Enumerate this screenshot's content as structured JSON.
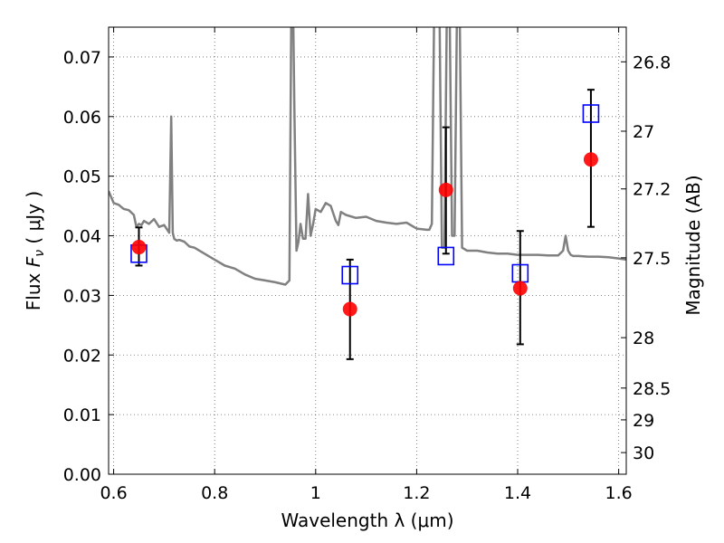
{
  "chart_data": {
    "type": "scatter",
    "xlabel": "Wavelength  λ (μm)",
    "ylabel": "Flux  F_ν  ( μJy )",
    "y2label": "Magnitude (AB)",
    "xlim": [
      0.59,
      1.615
    ],
    "ylim": [
      0.0,
      0.075
    ],
    "x_ticks": [
      {
        "value": 0.6,
        "label": "0.6"
      },
      {
        "value": 0.8,
        "label": "0.8"
      },
      {
        "value": 1.0,
        "label": "1"
      },
      {
        "value": 1.2,
        "label": "1.2"
      },
      {
        "value": 1.4,
        "label": "1.4"
      },
      {
        "value": 1.6,
        "label": "1.6"
      }
    ],
    "y_ticks": [
      {
        "value": 0.0,
        "label": "0.00"
      },
      {
        "value": 0.01,
        "label": "0.01"
      },
      {
        "value": 0.02,
        "label": "0.02"
      },
      {
        "value": 0.03,
        "label": "0.03"
      },
      {
        "value": 0.04,
        "label": "0.04"
      },
      {
        "value": 0.05,
        "label": "0.05"
      },
      {
        "value": 0.06,
        "label": "0.06"
      },
      {
        "value": 0.07,
        "label": "0.07"
      }
    ],
    "y2_ticks": [
      {
        "value": 26.8,
        "label": "26.8"
      },
      {
        "value": 27.0,
        "label": "27"
      },
      {
        "value": 27.2,
        "label": "27.2"
      },
      {
        "value": 27.5,
        "label": "27.5"
      },
      {
        "value": 28.0,
        "label": "28"
      },
      {
        "value": 28.5,
        "label": "28.5"
      },
      {
        "value": 29.0,
        "label": "29"
      },
      {
        "value": 30.0,
        "label": "30"
      }
    ],
    "grid": true,
    "colors": {
      "spectrum": "#808080",
      "observed": "#ff0000",
      "model": "#0000ff",
      "errorbar": "#000000"
    },
    "spectrum": {
      "x": [
        0.59,
        0.6,
        0.61,
        0.62,
        0.63,
        0.64,
        0.645,
        0.65,
        0.655,
        0.66,
        0.67,
        0.68,
        0.69,
        0.7,
        0.71,
        0.714,
        0.717,
        0.72,
        0.725,
        0.73,
        0.74,
        0.75,
        0.76,
        0.78,
        0.8,
        0.82,
        0.84,
        0.86,
        0.88,
        0.9,
        0.92,
        0.94,
        0.948,
        0.952,
        0.955,
        0.958,
        0.962,
        0.966,
        0.97,
        0.975,
        0.98,
        0.985,
        0.99,
        0.995,
        1.0,
        1.01,
        1.02,
        1.03,
        1.04,
        1.045,
        1.05,
        1.06,
        1.08,
        1.1,
        1.12,
        1.14,
        1.16,
        1.18,
        1.2,
        1.22,
        1.225,
        1.23,
        1.235,
        1.24,
        1.245,
        1.25,
        1.255,
        1.26,
        1.265,
        1.27,
        1.275,
        1.28,
        1.285,
        1.29,
        1.3,
        1.32,
        1.34,
        1.36,
        1.38,
        1.4,
        1.42,
        1.44,
        1.46,
        1.48,
        1.49,
        1.495,
        1.5,
        1.505,
        1.51,
        1.52,
        1.54,
        1.56,
        1.58,
        1.6,
        1.615
      ],
      "y": [
        0.0475,
        0.0455,
        0.0452,
        0.0445,
        0.0443,
        0.0435,
        0.0415,
        0.042,
        0.0418,
        0.0425,
        0.042,
        0.0428,
        0.0415,
        0.0418,
        0.0405,
        0.06,
        0.0405,
        0.0395,
        0.0392,
        0.0393,
        0.039,
        0.0382,
        0.038,
        0.037,
        0.036,
        0.035,
        0.0345,
        0.0335,
        0.0328,
        0.0325,
        0.0322,
        0.0318,
        0.0325,
        0.08,
        0.08,
        0.06,
        0.0375,
        0.039,
        0.042,
        0.0395,
        0.0395,
        0.047,
        0.04,
        0.042,
        0.0445,
        0.044,
        0.0455,
        0.045,
        0.0425,
        0.0418,
        0.044,
        0.0435,
        0.043,
        0.0432,
        0.0425,
        0.0422,
        0.042,
        0.0422,
        0.0412,
        0.041,
        0.041,
        0.042,
        0.08,
        0.08,
        0.08,
        0.038,
        0.038,
        0.08,
        0.08,
        0.04,
        0.04,
        0.08,
        0.08,
        0.038,
        0.0375,
        0.0375,
        0.0372,
        0.037,
        0.037,
        0.0368,
        0.0368,
        0.0368,
        0.0367,
        0.0367,
        0.0375,
        0.04,
        0.0375,
        0.0368,
        0.0366,
        0.0366,
        0.0365,
        0.0365,
        0.0364,
        0.0362,
        0.036
      ]
    },
    "observed": [
      {
        "x": 0.65,
        "y": 0.0381,
        "yerr_low": 0.0031,
        "yerr_high": 0.0033
      },
      {
        "x": 1.068,
        "y": 0.0277,
        "yerr_low": 0.0084,
        "yerr_high": 0.0083
      },
      {
        "x": 1.258,
        "y": 0.0477,
        "yerr_low": 0.0107,
        "yerr_high": 0.0105
      },
      {
        "x": 1.405,
        "y": 0.0312,
        "yerr_low": 0.0094,
        "yerr_high": 0.0096
      },
      {
        "x": 1.545,
        "y": 0.0528,
        "yerr_low": 0.0113,
        "yerr_high": 0.0117
      }
    ],
    "model": [
      {
        "x": 0.65,
        "y": 0.037
      },
      {
        "x": 1.068,
        "y": 0.0334
      },
      {
        "x": 1.258,
        "y": 0.0366
      },
      {
        "x": 1.405,
        "y": 0.0337
      },
      {
        "x": 1.545,
        "y": 0.0605
      }
    ]
  }
}
